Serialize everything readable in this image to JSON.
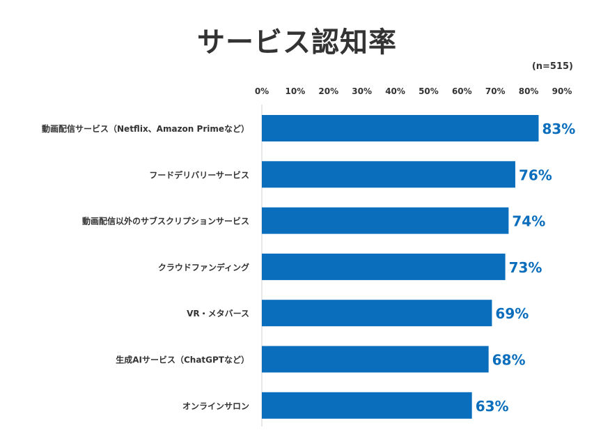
{
  "title": "サービス認知率",
  "note": "(n=515)",
  "colors": {
    "bar": "#0a6ebd",
    "value_label": "#0a6ebd",
    "text": "#333333",
    "axis": "#d0d0d0"
  },
  "chart_data": {
    "type": "bar",
    "orientation": "horizontal",
    "title": "サービス認知率",
    "xlabel": "",
    "ylabel": "",
    "xlim": [
      0,
      90
    ],
    "x_ticks": [
      "0%",
      "10%",
      "20%",
      "30%",
      "40%",
      "50%",
      "60%",
      "70%",
      "80%",
      "90%"
    ],
    "grid": false,
    "categories": [
      "動画配信サービス（Netflix、Amazon Primeなど）",
      "フードデリバリーサービス",
      "動画配信以外のサブスクリプションサービス",
      "クラウドファンディング",
      "VR・メタバース",
      "生成AIサービス（ChatGPTなど）",
      "オンラインサロン"
    ],
    "values": [
      83,
      76,
      74,
      73,
      69,
      68,
      63
    ],
    "value_labels": [
      "83%",
      "76%",
      "74%",
      "73%",
      "69%",
      "68%",
      "63%"
    ]
  }
}
